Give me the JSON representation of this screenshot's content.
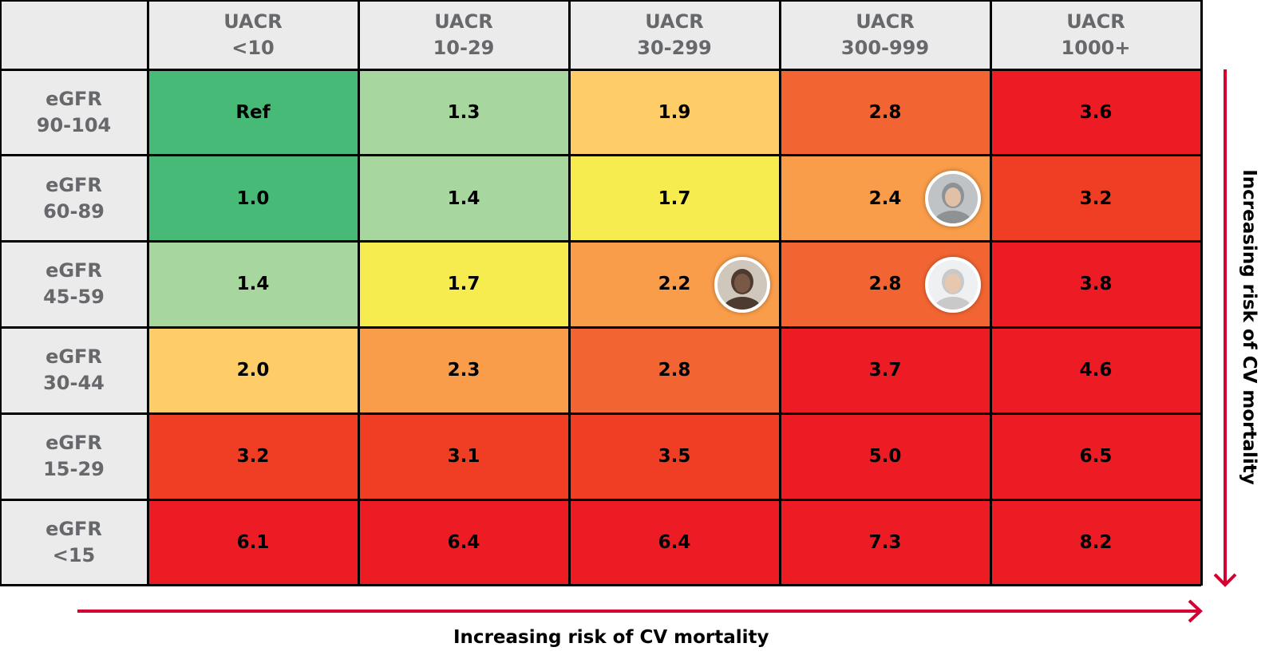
{
  "chart_data": {
    "type": "heatmap",
    "columns": [
      "UACR\n<10",
      "UACR\n10-29",
      "UACR\n30-299",
      "UACR\n300-999",
      "UACR\n1000+"
    ],
    "rows": [
      "eGFR\n90-104",
      "eGFR\n60-89",
      "eGFR\n45-59",
      "eGFR\n30-44",
      "eGFR\n15-29",
      "eGFR\n<15"
    ],
    "values": [
      [
        "Ref",
        "1.3",
        "1.9",
        "2.8",
        "3.6"
      ],
      [
        "1.0",
        "1.4",
        "1.7",
        "2.4",
        "3.2"
      ],
      [
        "1.4",
        "1.7",
        "2.2",
        "2.8",
        "3.8"
      ],
      [
        "2.0",
        "2.3",
        "2.8",
        "3.7",
        "4.6"
      ],
      [
        "3.2",
        "3.1",
        "3.5",
        "5.0",
        "6.5"
      ],
      [
        "6.1",
        "6.4",
        "6.4",
        "7.3",
        "8.2"
      ]
    ],
    "cell_colors": [
      [
        "#47ba78",
        "#a8d69f",
        "#fecd67",
        "#f26532",
        "#ed1c24"
      ],
      [
        "#47ba78",
        "#a8d69f",
        "#f6ec50",
        "#f99d4a",
        "#ef3e24"
      ],
      [
        "#a8d69f",
        "#f6ec50",
        "#f99d4a",
        "#f26532",
        "#ed1c24"
      ],
      [
        "#fecd67",
        "#f99d4a",
        "#f26532",
        "#ed1c24",
        "#ed1c24"
      ],
      [
        "#ef3e24",
        "#ef3e24",
        "#ef3e24",
        "#ed1c24",
        "#ed1c24"
      ],
      [
        "#ed1c24",
        "#ed1c24",
        "#ed1c24",
        "#ed1c24",
        "#ed1c24"
      ]
    ],
    "patient_photos": [
      {
        "row": 1,
        "col": 3,
        "icon": "woman-gray-hair-photo"
      },
      {
        "row": 2,
        "col": 2,
        "icon": "man-glasses-photo"
      },
      {
        "row": 2,
        "col": 3,
        "icon": "woman-short-gray-hair-photo"
      }
    ],
    "xlabel": "Increasing risk of CV mortality",
    "ylabel": "Increasing risk of CV mortality",
    "header_bg": "#ebebeb",
    "header_text_color": "#67686b",
    "arrow_color": "#d50032"
  }
}
